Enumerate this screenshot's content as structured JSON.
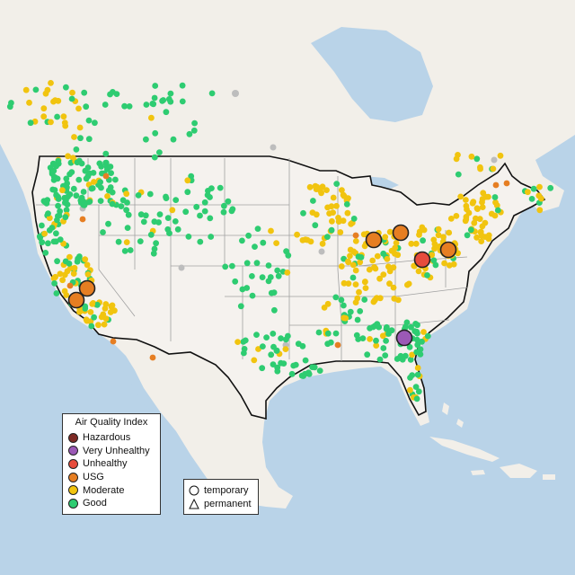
{
  "legend": {
    "title": "Air Quality Index",
    "items": [
      {
        "label": "Hazardous",
        "color": "#7e2a24"
      },
      {
        "label": "Very Unhealthy",
        "color": "#9b59b6"
      },
      {
        "label": "Unhealthy",
        "color": "#e74c3c"
      },
      {
        "label": "USG",
        "color": "#e67e22"
      },
      {
        "label": "Moderate",
        "color": "#f1c40f"
      },
      {
        "label": "Good",
        "color": "#2ecc71"
      }
    ]
  },
  "monitor_types": [
    "temporary",
    "permanent"
  ],
  "colors": {
    "ocean": "#b9d3e8",
    "land": "#f2efe9",
    "us_land": "#f5f2ee",
    "border": "#111111",
    "state_line": "#a0a0a0",
    "offline": "#bdbdbd"
  }
}
